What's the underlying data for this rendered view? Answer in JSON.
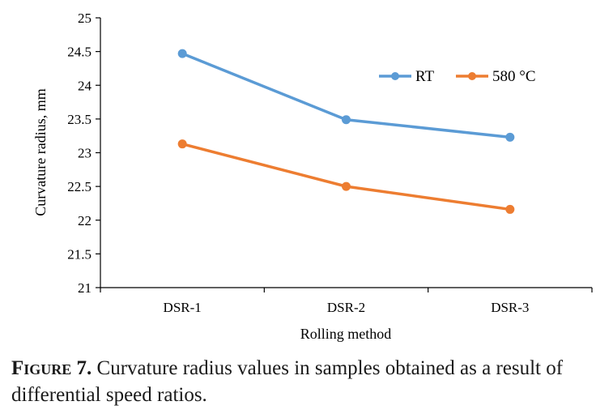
{
  "chart_data": {
    "type": "line",
    "categories": [
      "DSR-1",
      "DSR-2",
      "DSR-3"
    ],
    "series": [
      {
        "name": "RT",
        "values": [
          24.47,
          23.49,
          23.23
        ],
        "color": "#5b9bd5"
      },
      {
        "name": "580 °C",
        "values": [
          23.13,
          22.5,
          22.16
        ],
        "color": "#ed7d31"
      }
    ],
    "xlabel": "Rolling method",
    "ylabel": "Curvature radius, mm",
    "ylim": [
      21,
      25
    ],
    "yticks": [
      "21",
      "21.5",
      "22",
      "22.5",
      "23",
      "23.5",
      "24",
      "24.5",
      "25"
    ],
    "grid": false,
    "legend_position": "top-right",
    "axis_color": "#000000"
  },
  "caption": {
    "label": "Figure",
    "number": "7.",
    "text": " Curvature radius values in samples obtained as a result of differential speed ratios."
  }
}
